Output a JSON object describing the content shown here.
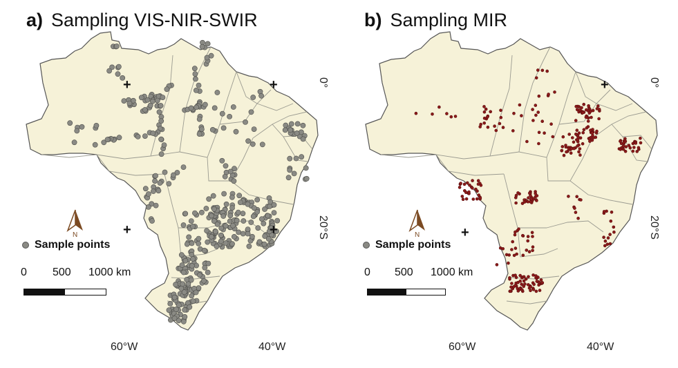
{
  "panels": [
    {
      "letter": "a)",
      "title": "Sampling VIS-NIR-SWIR",
      "legend": "Sample points",
      "point_color": "#8a8a84",
      "point_stroke": "#4e4e4a",
      "north": "N",
      "scale": [
        "0",
        "500",
        "1000 km"
      ],
      "lon_labels": [
        "60°W",
        "40°W"
      ],
      "lat_labels": [
        "0°",
        "20°S"
      ],
      "icon": "north-arrow-icon"
    },
    {
      "letter": "b)",
      "title": "Sampling MIR",
      "legend": "Sample points",
      "point_color": "#8b1a1a",
      "point_stroke": "#5a0d0d",
      "north": "N",
      "scale": [
        "0",
        "500",
        "1000 km"
      ],
      "lon_labels": [
        "60°W",
        "40°W"
      ],
      "lat_labels": [
        "0°",
        "20°S"
      ],
      "icon": "north-arrow-icon"
    }
  ],
  "colors": {
    "land": "#f6f2d8",
    "border": "#9a9a90"
  }
}
